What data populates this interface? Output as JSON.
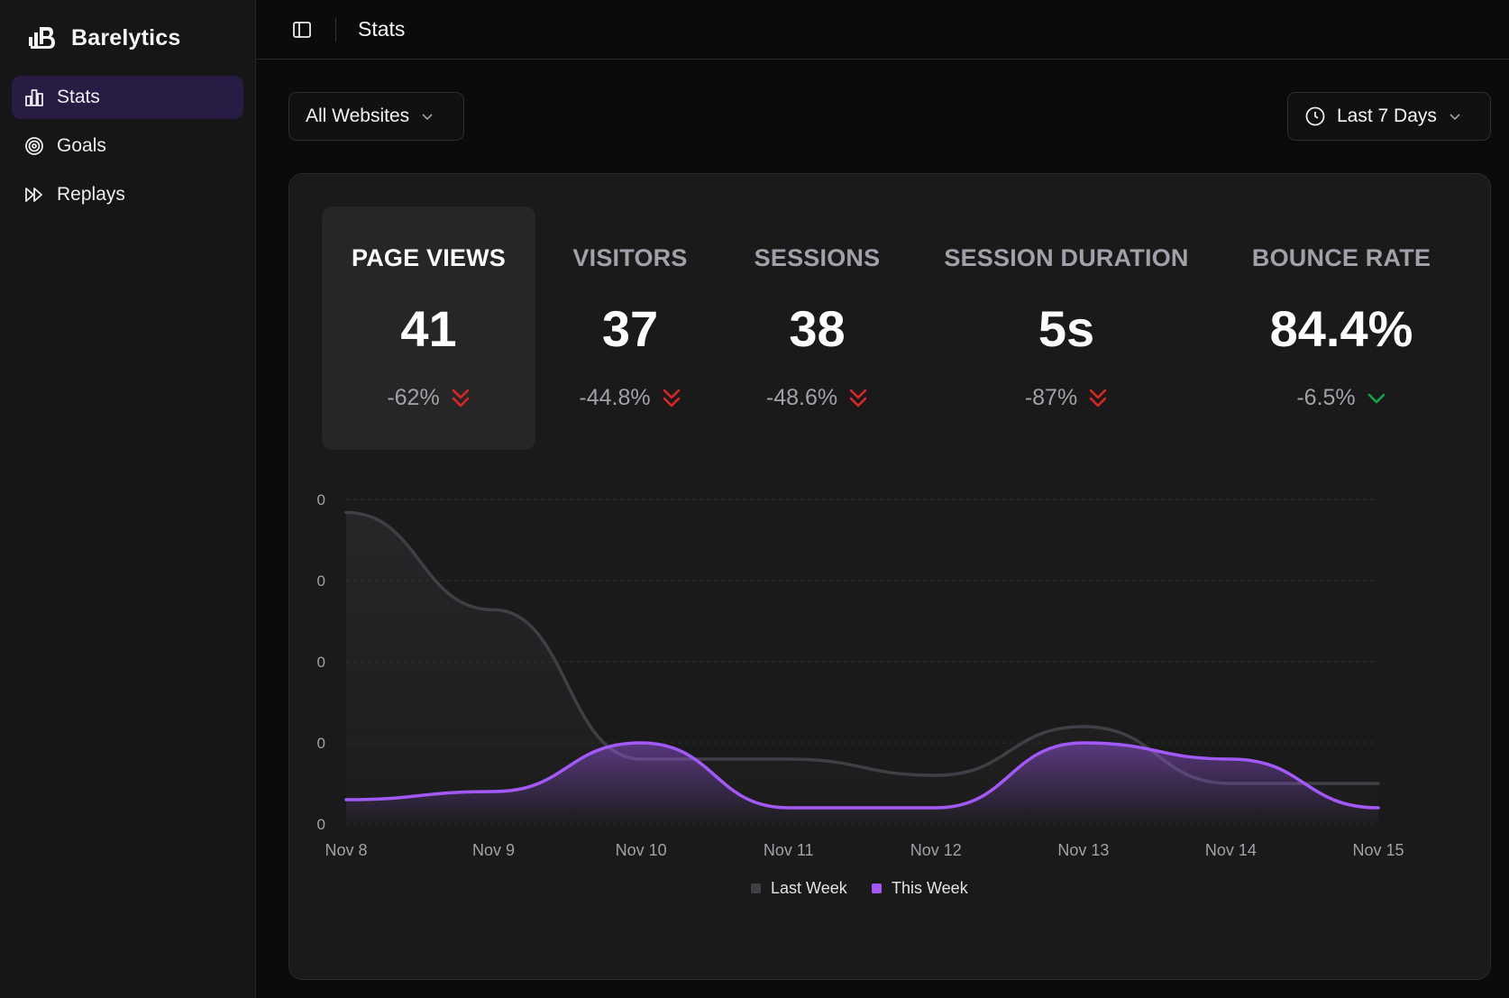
{
  "app": {
    "brand": "Barelytics",
    "page_title": "Stats"
  },
  "sidebar": {
    "items": [
      {
        "label": "Stats",
        "icon": "bar-chart-icon",
        "active": true
      },
      {
        "label": "Goals",
        "icon": "target-icon",
        "active": false
      },
      {
        "label": "Replays",
        "icon": "fast-forward-icon",
        "active": false
      }
    ]
  },
  "filters": {
    "website": "All Websites",
    "range": "Last 7 Days"
  },
  "metrics": [
    {
      "label": "PAGE VIEWS",
      "value": "41",
      "change": "-62%",
      "trend": "down-bad"
    },
    {
      "label": "VISITORS",
      "value": "37",
      "change": "-44.8%",
      "trend": "down-bad"
    },
    {
      "label": "SESSIONS",
      "value": "38",
      "change": "-48.6%",
      "trend": "down-bad"
    },
    {
      "label": "SESSION DURATION",
      "value": "5s",
      "change": "-87%",
      "trend": "down-bad"
    },
    {
      "label": "BOUNCE RATE",
      "value": "84.4%",
      "change": "-6.5%",
      "trend": "down-good"
    }
  ],
  "colors": {
    "accent": "#a259f7",
    "last_week": "#3f3f46",
    "negative": "#dc2626",
    "positive": "#16a34a"
  },
  "chart_data": {
    "type": "area",
    "x": [
      "Nov 8",
      "Nov 9",
      "Nov 10",
      "Nov 11",
      "Nov 12",
      "Nov 13",
      "Nov 14",
      "Nov 15"
    ],
    "y_tick_labels": [
      "0",
      "0",
      "0",
      "0",
      "0"
    ],
    "ylim": [
      0,
      20
    ],
    "grid": true,
    "legend": "bottom-center",
    "series": [
      {
        "name": "Last Week",
        "values": [
          19.2,
          13.2,
          4.0,
          4.0,
          3.0,
          6.0,
          2.5,
          2.5
        ]
      },
      {
        "name": "This Week",
        "values": [
          1.5,
          2.0,
          5.0,
          1.0,
          1.0,
          5.0,
          4.0,
          1.0
        ]
      }
    ]
  }
}
